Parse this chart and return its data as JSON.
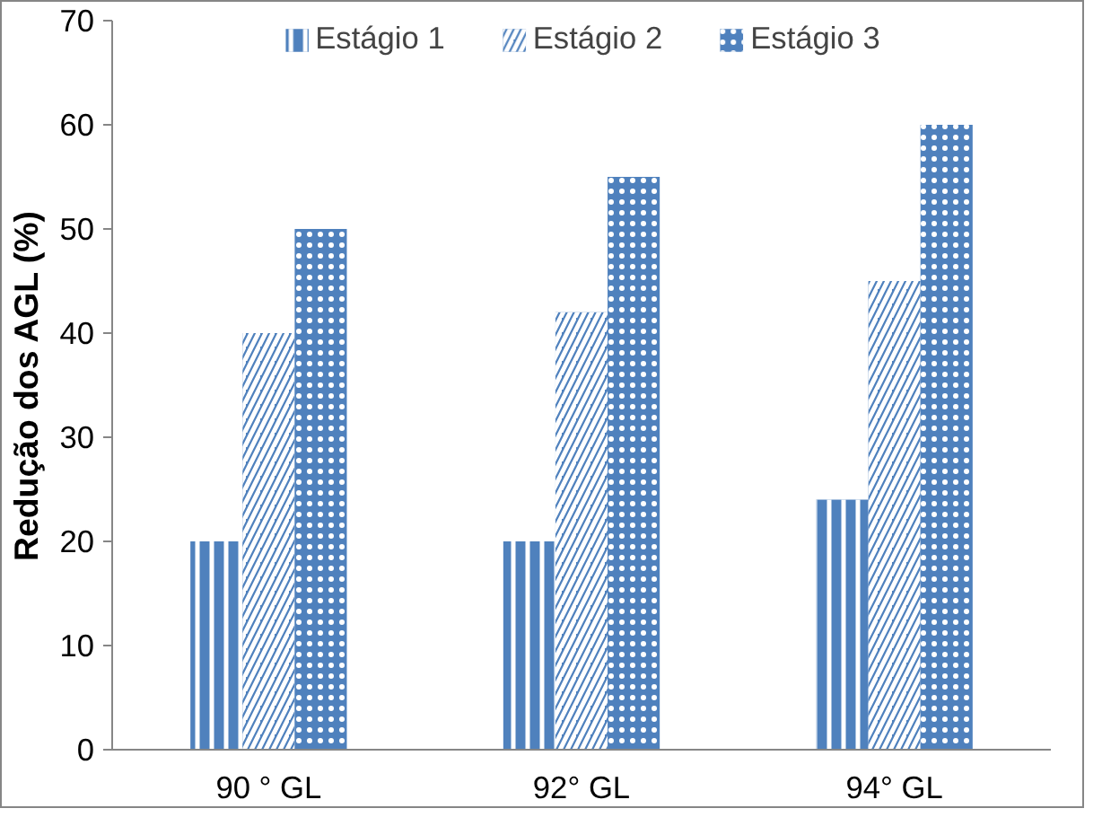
{
  "chart_data": {
    "type": "bar",
    "ylabel": "Redução dos AGL (%)",
    "categories": [
      "90 ° GL",
      "92° GL",
      "94° GL"
    ],
    "series": [
      {
        "name": "Estágio 1",
        "color": "#4f81bd",
        "values": [
          20,
          20,
          24
        ]
      },
      {
        "name": "Estágio 2",
        "color": "#4f81bd",
        "values": [
          40,
          42,
          45
        ]
      },
      {
        "name": "Estágio 3",
        "color": "#4f81bd",
        "values": [
          50,
          55,
          60
        ]
      }
    ],
    "ylim": [
      0,
      70
    ],
    "yticks": [
      0,
      10,
      20,
      30,
      40,
      50,
      60,
      70
    ],
    "grid": false,
    "legend": "top"
  }
}
